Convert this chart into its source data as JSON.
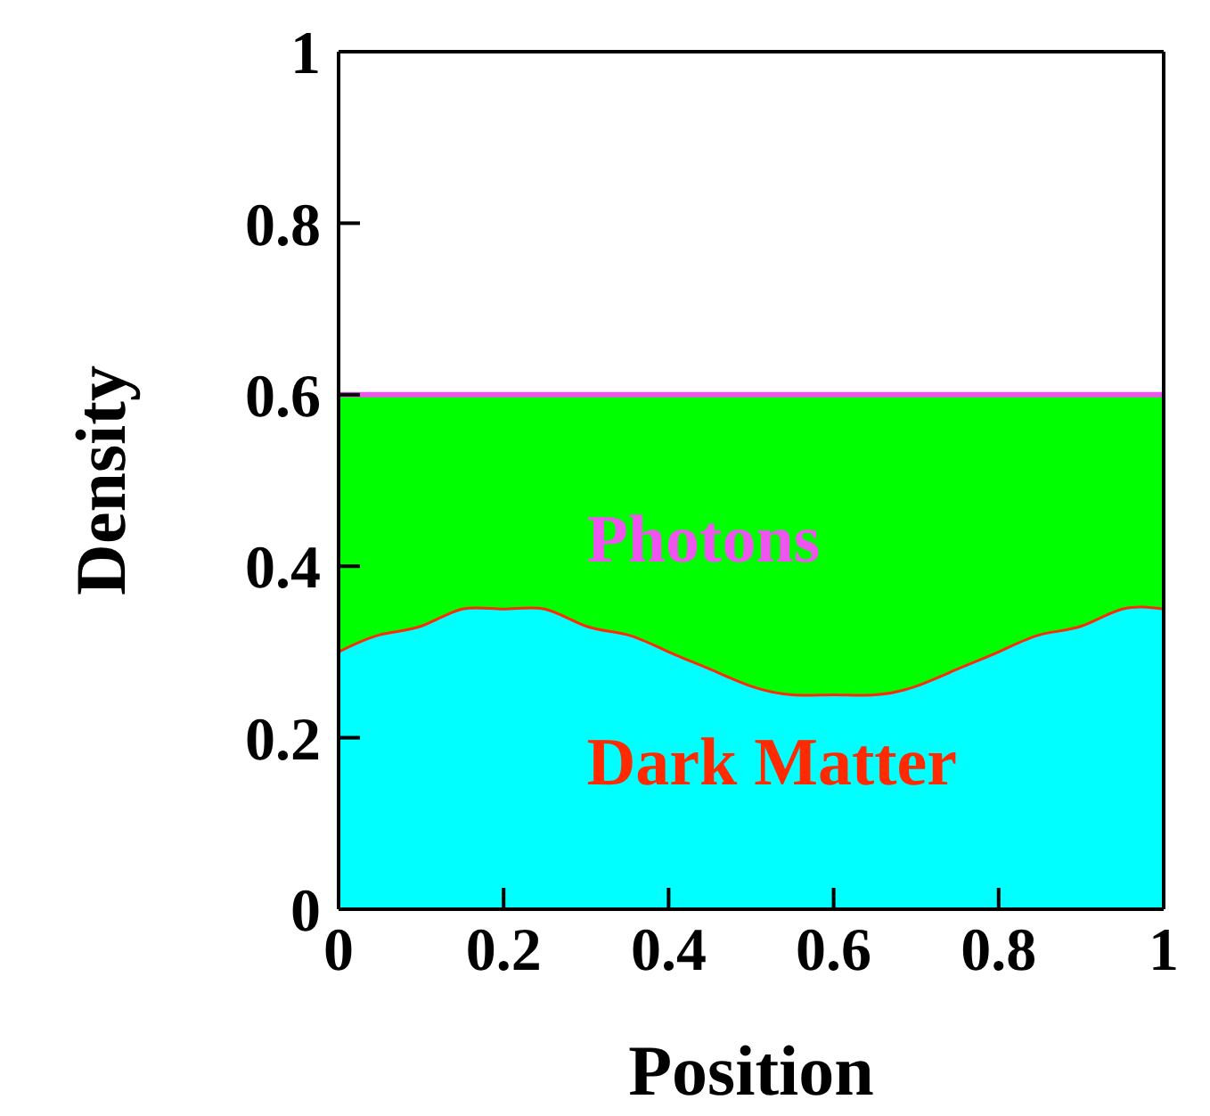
{
  "chart_data": {
    "type": "area",
    "xlabel": "Position",
    "ylabel": "Density",
    "x": [
      0,
      0.05,
      0.1,
      0.15,
      0.2,
      0.25,
      0.3,
      0.35,
      0.4,
      0.45,
      0.5,
      0.55,
      0.6,
      0.65,
      0.7,
      0.75,
      0.8,
      0.85,
      0.9,
      0.95,
      1
    ],
    "stacked": true,
    "series": [
      {
        "color": "#00ffff",
        "values": [
          0.3,
          0.32,
          0.33,
          0.35,
          0.35,
          0.35,
          0.33,
          0.32,
          0.3,
          0.28,
          0.26,
          0.25,
          0.25,
          0.25,
          0.26,
          0.28,
          0.3,
          0.32,
          0.33,
          0.35,
          0.35
        ]
      },
      {
        "color": "#00ff00",
        "values": [
          0.3,
          0.28,
          0.27,
          0.25,
          0.25,
          0.25,
          0.27,
          0.28,
          0.3,
          0.32,
          0.34,
          0.35,
          0.35,
          0.35,
          0.34,
          0.32,
          0.3,
          0.28,
          0.27,
          0.25,
          0.25
        ]
      },
      {
        "type": "line",
        "name": "Dark Matter",
        "color": "#ff2a00",
        "values": [
          0.3,
          0.32,
          0.33,
          0.35,
          0.35,
          0.35,
          0.33,
          0.32,
          0.3,
          0.28,
          0.26,
          0.25,
          0.25,
          0.25,
          0.26,
          0.28,
          0.3,
          0.32,
          0.33,
          0.35,
          0.35
        ]
      },
      {
        "type": "line",
        "name": "Photons",
        "color": "#ee55ee",
        "values": [
          0.6,
          0.6,
          0.6,
          0.6,
          0.6,
          0.6,
          0.6,
          0.6,
          0.6,
          0.6,
          0.6,
          0.6,
          0.6,
          0.6,
          0.6,
          0.6,
          0.6,
          0.6,
          0.6,
          0.6,
          0.6
        ]
      }
    ],
    "xlim": [
      0,
      1
    ],
    "xticks": [
      0,
      0.2,
      0.4,
      0.6,
      0.8,
      1
    ],
    "ylim": [
      0,
      1
    ],
    "yticks": [
      0,
      0.2,
      0.4,
      0.6,
      0.8,
      1
    ]
  }
}
